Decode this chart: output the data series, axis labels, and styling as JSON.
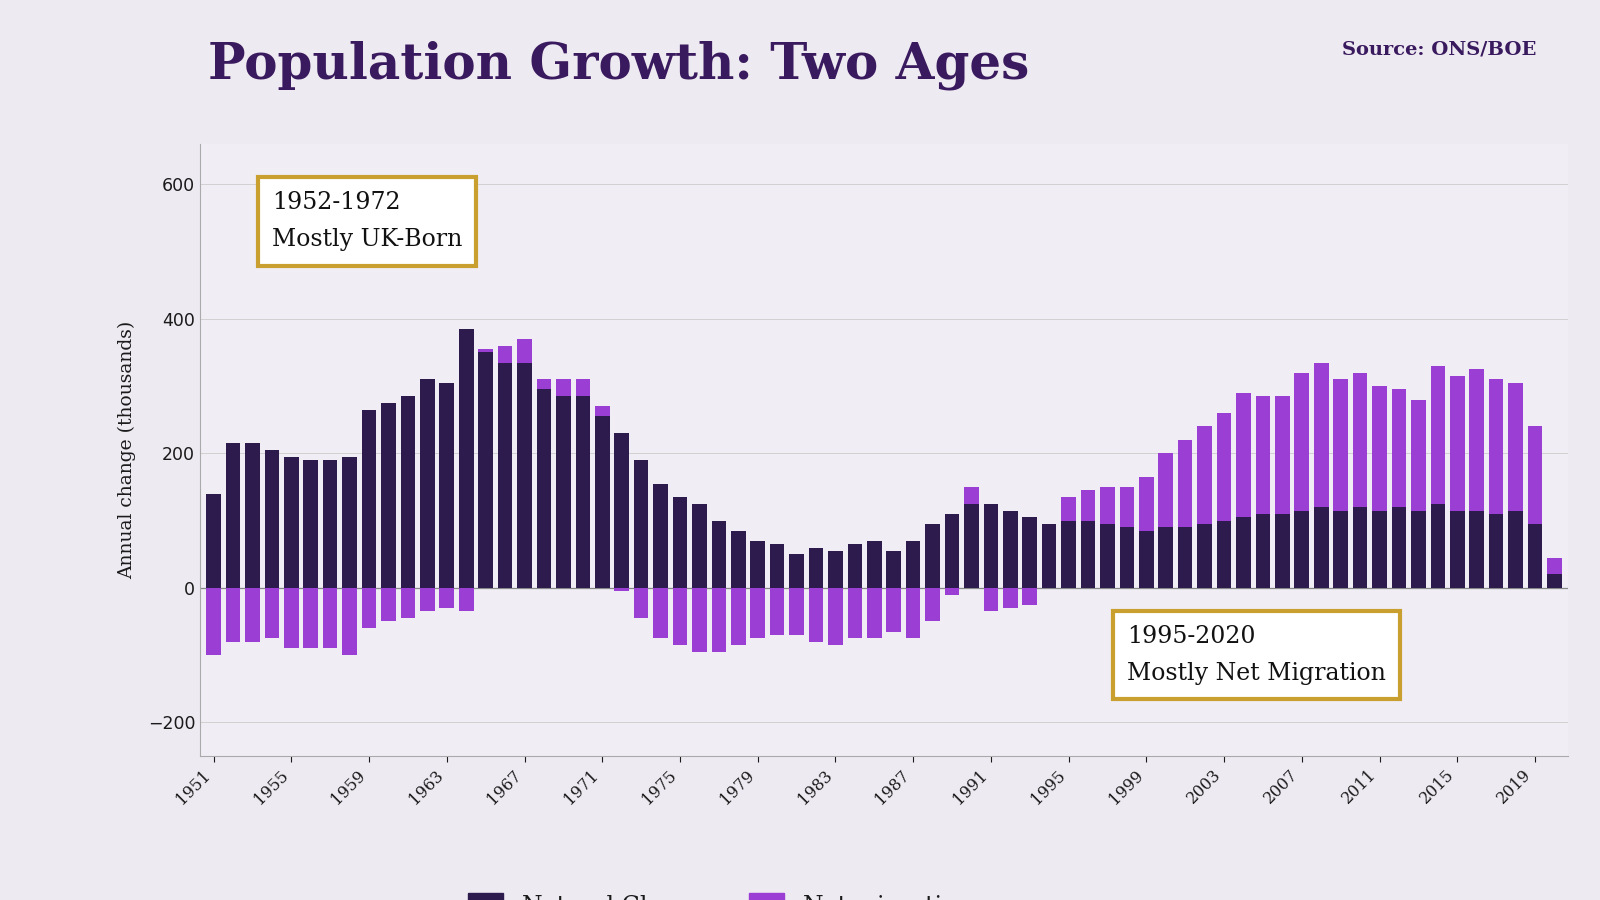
{
  "title": "Population Growth: Two Ages",
  "source": "Source: ONS/BOE",
  "ylabel": "Annual change (thousands)",
  "background_color": "#eeeaf2",
  "chart_bg_color": "#f0edf5",
  "left_panel_color": "#3a1a5e",
  "gold_color": "#c9a030",
  "natural_color": "#2d1b4e",
  "migration_color": "#9b3fd4",
  "title_color": "#3a1a5e",
  "years": [
    1951,
    1952,
    1953,
    1954,
    1955,
    1956,
    1957,
    1958,
    1959,
    1960,
    1961,
    1962,
    1963,
    1964,
    1965,
    1966,
    1967,
    1968,
    1969,
    1970,
    1971,
    1972,
    1973,
    1974,
    1975,
    1976,
    1977,
    1978,
    1979,
    1980,
    1981,
    1982,
    1983,
    1984,
    1985,
    1986,
    1987,
    1988,
    1989,
    1990,
    1991,
    1992,
    1993,
    1994,
    1995,
    1996,
    1997,
    1998,
    1999,
    2000,
    2001,
    2002,
    2003,
    2004,
    2005,
    2006,
    2007,
    2008,
    2009,
    2010,
    2011,
    2012,
    2013,
    2014,
    2015,
    2016,
    2017,
    2018,
    2019,
    2020
  ],
  "natural_change": [
    140,
    215,
    215,
    205,
    195,
    190,
    190,
    195,
    265,
    275,
    285,
    310,
    305,
    385,
    350,
    335,
    335,
    295,
    285,
    285,
    255,
    230,
    190,
    155,
    135,
    125,
    100,
    85,
    70,
    65,
    50,
    60,
    55,
    65,
    70,
    55,
    70,
    95,
    110,
    125,
    125,
    115,
    105,
    95,
    100,
    100,
    95,
    90,
    85,
    90,
    90,
    95,
    100,
    105,
    110,
    110,
    115,
    120,
    115,
    120,
    115,
    120,
    115,
    125,
    115,
    115,
    110,
    115,
    95,
    20
  ],
  "net_migration": [
    -100,
    -80,
    -80,
    -75,
    -90,
    -90,
    -90,
    -100,
    -60,
    -50,
    -45,
    -35,
    -30,
    -35,
    5,
    25,
    35,
    15,
    25,
    25,
    15,
    -5,
    -45,
    -75,
    -85,
    -95,
    -95,
    -85,
    -75,
    -70,
    -70,
    -80,
    -85,
    -75,
    -75,
    -65,
    -75,
    -50,
    -10,
    25,
    -35,
    -30,
    -25,
    0,
    35,
    45,
    55,
    60,
    80,
    110,
    130,
    145,
    160,
    185,
    175,
    175,
    205,
    215,
    195,
    200,
    185,
    175,
    165,
    205,
    200,
    210,
    200,
    190,
    145,
    25
  ],
  "annotation1_text": "1952-1972\nMostly UK-Born",
  "annotation2_text": "1995-2020\nMostly Net Migration",
  "ylim": [
    -250,
    660
  ],
  "yticks": [
    -200,
    0,
    200,
    400,
    600
  ]
}
